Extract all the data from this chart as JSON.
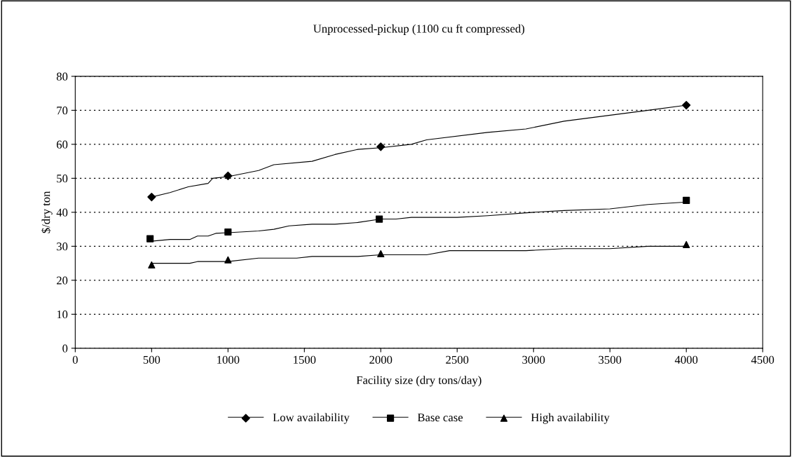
{
  "chart_data": {
    "type": "line",
    "title": "Unprocessed-pickup (1100 cu ft compressed)",
    "xlabel": "Facility size (dry tons/day)",
    "ylabel": "$/dry ton",
    "xlim": [
      0,
      4500
    ],
    "xticks": [
      0,
      500,
      1000,
      1500,
      2000,
      2500,
      3000,
      3500,
      4000,
      4500
    ],
    "ylim": [
      0,
      80
    ],
    "yticks": [
      0,
      10,
      20,
      30,
      40,
      50,
      60,
      70,
      80
    ],
    "grid": "y",
    "legend": "bottom",
    "line_style": "solid",
    "series": [
      {
        "name": "Low availability",
        "color": "#000000",
        "x": [
          500,
          620,
          740,
          870,
          900,
          1000,
          1200,
          1300,
          1550,
          1700,
          1850,
          2000,
          2200,
          2300,
          2700,
          2950,
          3200,
          3750,
          4000
        ],
        "values": [
          44.5,
          45.8,
          47.5,
          48.5,
          50,
          50.5,
          52.3,
          54,
          55,
          57,
          58.5,
          59,
          60,
          61.3,
          63.5,
          64.5,
          66.8,
          70,
          71.5
        ]
      },
      {
        "type": "scatter",
        "color": "#000000",
        "marker": "diamond",
        "x": [
          500,
          1000,
          2000,
          4000
        ],
        "values": [
          44.5,
          50.7,
          59.3,
          71.5
        ]
      },
      {
        "name": "Base case",
        "color": "#000000",
        "x": [
          500,
          620,
          750,
          800,
          870,
          920,
          1000,
          1200,
          1300,
          1400,
          1550,
          1700,
          1850,
          2000,
          2100,
          2200,
          2500,
          2700,
          3000,
          3200,
          3500,
          3750,
          4000
        ],
        "values": [
          31.5,
          32,
          32,
          33,
          33,
          33.8,
          34,
          34.5,
          35,
          36,
          36.5,
          36.5,
          37,
          38,
          38,
          38.5,
          38.5,
          39,
          40,
          40.5,
          41,
          42.3,
          43
        ]
      },
      {
        "type": "scatter",
        "color": "#000000",
        "marker": "square",
        "x": [
          490,
          1000,
          1990,
          4000
        ],
        "values": [
          32.2,
          34.2,
          38,
          43.5
        ]
      },
      {
        "name": "High availability",
        "color": "#000000",
        "x": [
          500,
          750,
          800,
          1000,
          1200,
          1450,
          1550,
          1850,
          2000,
          2300,
          2450,
          2950,
          3200,
          3500,
          3750,
          4000
        ],
        "values": [
          25,
          25,
          25.5,
          25.5,
          26.5,
          26.5,
          27,
          27,
          27.5,
          27.5,
          28.7,
          28.7,
          29.3,
          29.3,
          30,
          30
        ]
      },
      {
        "type": "scatter",
        "color": "#000000",
        "marker": "triangle",
        "x": [
          500,
          1000,
          2000,
          4000
        ],
        "values": [
          24.5,
          26,
          27.8,
          30.5
        ]
      }
    ]
  }
}
